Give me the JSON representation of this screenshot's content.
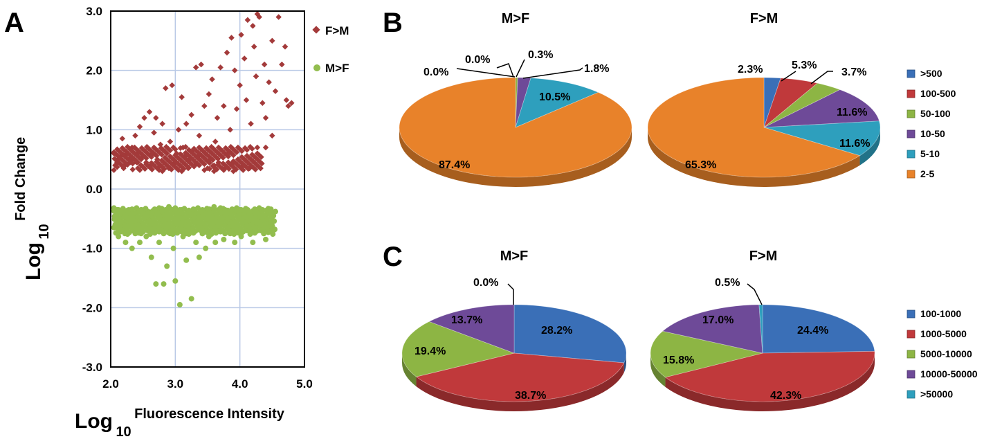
{
  "panels": {
    "a": "A",
    "b": "B",
    "c": "C"
  },
  "colors": {
    "fm": "#a33a3a",
    "mf": "#92bd4e",
    "grid": "#b9c9e6",
    "b_slices": [
      "#3a6fb7",
      "#c0393b",
      "#8db544",
      "#6e4a98",
      "#2e9fbd",
      "#e8822a"
    ],
    "c_slices": [
      "#3a6fb7",
      "#c0393b",
      "#8db544",
      "#6e4a98",
      "#2e9fbd"
    ]
  },
  "chart_data": [
    {
      "type": "scatter",
      "xlabel_main": "Log",
      "xlabel_sub": "10",
      "xlabel_sup": "Fluorescence Intensity",
      "ylabel_main": "Log",
      "ylabel_sub": "10",
      "ylabel_sup": "Fold Change",
      "xlim": [
        2.0,
        5.0
      ],
      "ylim": [
        -3.0,
        3.0
      ],
      "xticks": [
        "2.0",
        "3.0",
        "4.0",
        "5.0"
      ],
      "yticks": [
        "3.0",
        "2.0",
        "1.0",
        "0.0",
        "-1.0",
        "-2.0",
        "-3.0"
      ],
      "grid": true,
      "legend_position": "top-right",
      "series": [
        {
          "name": "F>M",
          "points": [
            [
              2.05,
              0.6
            ],
            [
              2.07,
              0.4
            ],
            [
              2.1,
              0.45
            ],
            [
              2.12,
              0.5
            ],
            [
              2.15,
              0.55
            ],
            [
              2.18,
              0.85
            ],
            [
              2.2,
              0.35
            ],
            [
              2.22,
              0.4
            ],
            [
              2.25,
              0.6
            ],
            [
              2.28,
              0.5
            ],
            [
              2.3,
              0.45
            ],
            [
              2.33,
              0.7
            ],
            [
              2.35,
              0.5
            ],
            [
              2.38,
              0.9
            ],
            [
              2.4,
              0.45
            ],
            [
              2.42,
              0.6
            ],
            [
              2.45,
              1.05
            ],
            [
              2.47,
              0.4
            ],
            [
              2.5,
              0.55
            ],
            [
              2.52,
              1.2
            ],
            [
              2.55,
              0.45
            ],
            [
              2.57,
              0.7
            ],
            [
              2.6,
              1.3
            ],
            [
              2.62,
              0.4
            ],
            [
              2.65,
              0.6
            ],
            [
              2.67,
              0.95
            ],
            [
              2.7,
              1.2
            ],
            [
              2.72,
              0.5
            ],
            [
              2.75,
              0.38
            ],
            [
              2.77,
              0.75
            ],
            [
              2.8,
              1.1
            ],
            [
              2.82,
              0.45
            ],
            [
              2.85,
              1.7
            ],
            [
              2.87,
              0.6
            ],
            [
              2.9,
              0.35
            ],
            [
              2.92,
              0.8
            ],
            [
              2.95,
              1.75
            ],
            [
              2.97,
              0.5
            ],
            [
              3.0,
              0.45
            ],
            [
              3.02,
              0.6
            ],
            [
              3.05,
              1.0
            ],
            [
              3.07,
              0.4
            ],
            [
              3.1,
              1.55
            ],
            [
              3.12,
              0.7
            ],
            [
              3.15,
              0.55
            ],
            [
              3.17,
              1.1
            ],
            [
              3.2,
              0.35
            ],
            [
              3.22,
              0.5
            ],
            [
              3.25,
              1.25
            ],
            [
              3.27,
              0.65
            ],
            [
              3.3,
              0.4
            ],
            [
              3.32,
              2.05
            ],
            [
              3.35,
              0.55
            ],
            [
              3.37,
              0.9
            ],
            [
              3.4,
              2.1
            ],
            [
              3.42,
              0.45
            ],
            [
              3.45,
              1.4
            ],
            [
              3.47,
              0.6
            ],
            [
              3.5,
              0.35
            ],
            [
              3.52,
              1.6
            ],
            [
              3.55,
              0.5
            ],
            [
              3.57,
              1.85
            ],
            [
              3.6,
              0.4
            ],
            [
              3.62,
              0.8
            ],
            [
              3.65,
              1.2
            ],
            [
              3.67,
              0.45
            ],
            [
              3.7,
              2.05
            ],
            [
              3.72,
              0.55
            ],
            [
              3.75,
              1.4
            ],
            [
              3.77,
              0.35
            ],
            [
              3.8,
              2.3
            ],
            [
              3.82,
              0.6
            ],
            [
              3.85,
              1.0
            ],
            [
              3.87,
              2.55
            ],
            [
              3.9,
              0.45
            ],
            [
              3.92,
              2.0
            ],
            [
              3.95,
              1.35
            ],
            [
              3.97,
              0.5
            ],
            [
              4.0,
              1.75
            ],
            [
              4.02,
              2.6
            ],
            [
              4.05,
              0.4
            ],
            [
              4.07,
              2.2
            ],
            [
              4.1,
              1.5
            ],
            [
              4.12,
              2.85
            ],
            [
              4.15,
              0.35
            ],
            [
              4.17,
              1.1
            ],
            [
              4.2,
              2.75
            ],
            [
              4.22,
              2.4
            ],
            [
              4.25,
              1.9
            ],
            [
              4.27,
              2.95
            ],
            [
              4.3,
              2.9
            ],
            [
              4.32,
              0.35
            ],
            [
              4.35,
              1.45
            ],
            [
              4.38,
              2.1
            ],
            [
              4.4,
              1.2
            ],
            [
              4.45,
              1.8
            ],
            [
              4.5,
              2.5
            ],
            [
              4.55,
              1.65
            ],
            [
              4.6,
              2.9
            ],
            [
              4.65,
              2.1
            ],
            [
              4.7,
              2.4
            ],
            [
              4.72,
              1.5
            ],
            [
              4.75,
              1.4
            ],
            [
              4.8,
              1.45
            ],
            [
              4.5,
              0.9
            ],
            [
              4.4,
              0.7
            ],
            [
              3.6,
              0.3
            ],
            [
              3.1,
              0.3
            ],
            [
              2.8,
              0.3
            ],
            [
              3.9,
              0.3
            ]
          ]
        },
        {
          "name": "M>F",
          "points": [
            [
              2.05,
              -0.65
            ],
            [
              2.08,
              -0.45
            ],
            [
              2.1,
              -0.35
            ],
            [
              2.12,
              -0.8
            ],
            [
              2.15,
              -0.5
            ],
            [
              2.18,
              -0.7
            ],
            [
              2.2,
              -0.4
            ],
            [
              2.23,
              -0.9
            ],
            [
              2.25,
              -0.55
            ],
            [
              2.28,
              -0.35
            ],
            [
              2.3,
              -0.6
            ],
            [
              2.33,
              -1.0
            ],
            [
              2.35,
              -0.45
            ],
            [
              2.38,
              -0.75
            ],
            [
              2.4,
              -0.4
            ],
            [
              2.43,
              -0.55
            ],
            [
              2.45,
              -0.9
            ],
            [
              2.48,
              -0.35
            ],
            [
              2.5,
              -0.65
            ],
            [
              2.53,
              -0.45
            ],
            [
              2.55,
              -0.8
            ],
            [
              2.58,
              -0.38
            ],
            [
              2.6,
              -0.55
            ],
            [
              2.63,
              -1.15
            ],
            [
              2.65,
              -0.45
            ],
            [
              2.68,
              -0.7
            ],
            [
              2.7,
              -1.6
            ],
            [
              2.72,
              -0.4
            ],
            [
              2.75,
              -0.9
            ],
            [
              2.78,
              -0.5
            ],
            [
              2.8,
              -0.65
            ],
            [
              2.82,
              -1.6
            ],
            [
              2.85,
              -0.35
            ],
            [
              2.87,
              -1.3
            ],
            [
              2.9,
              -0.5
            ],
            [
              2.92,
              -0.75
            ],
            [
              2.95,
              -0.4
            ],
            [
              2.97,
              -1.0
            ],
            [
              3.0,
              -1.55
            ],
            [
              3.02,
              -0.6
            ],
            [
              3.05,
              -0.45
            ],
            [
              3.07,
              -1.95
            ],
            [
              3.1,
              -0.35
            ],
            [
              3.12,
              -0.8
            ],
            [
              3.15,
              -0.55
            ],
            [
              3.17,
              -1.2
            ],
            [
              3.2,
              -0.4
            ],
            [
              3.22,
              -0.7
            ],
            [
              3.25,
              -1.85
            ],
            [
              3.27,
              -0.5
            ],
            [
              3.3,
              -0.35
            ],
            [
              3.32,
              -0.9
            ],
            [
              3.35,
              -0.6
            ],
            [
              3.37,
              -1.15
            ],
            [
              3.4,
              -0.45
            ],
            [
              3.42,
              -0.75
            ],
            [
              3.45,
              -0.38
            ],
            [
              3.47,
              -1.0
            ],
            [
              3.5,
              -0.55
            ],
            [
              3.52,
              -0.8
            ],
            [
              3.55,
              -0.4
            ],
            [
              3.57,
              -0.65
            ],
            [
              3.6,
              -0.35
            ],
            [
              3.62,
              -0.9
            ],
            [
              3.65,
              -0.5
            ],
            [
              3.67,
              -0.7
            ],
            [
              3.7,
              -0.4
            ],
            [
              3.72,
              -0.55
            ],
            [
              3.75,
              -0.85
            ],
            [
              3.77,
              -0.35
            ],
            [
              3.8,
              -0.6
            ],
            [
              3.82,
              -0.45
            ],
            [
              3.85,
              -0.75
            ],
            [
              3.87,
              -0.38
            ],
            [
              3.9,
              -0.55
            ],
            [
              3.92,
              -0.9
            ],
            [
              3.95,
              -0.4
            ],
            [
              3.97,
              -0.65
            ],
            [
              4.0,
              -0.35
            ],
            [
              4.02,
              -0.8
            ],
            [
              4.05,
              -0.5
            ],
            [
              4.07,
              -0.4
            ],
            [
              4.1,
              -0.7
            ],
            [
              4.12,
              -0.35
            ],
            [
              4.15,
              -0.55
            ],
            [
              4.17,
              -0.45
            ],
            [
              4.2,
              -0.9
            ],
            [
              4.22,
              -0.38
            ],
            [
              4.25,
              -0.6
            ],
            [
              4.27,
              -0.4
            ],
            [
              4.3,
              -0.5
            ],
            [
              4.32,
              -0.7
            ],
            [
              4.35,
              -0.35
            ],
            [
              4.38,
              -0.45
            ],
            [
              4.4,
              -0.85
            ],
            [
              4.45,
              -0.4
            ],
            [
              4.5,
              -0.55
            ],
            [
              4.55,
              -0.38
            ],
            [
              2.9,
              -0.3
            ],
            [
              3.6,
              -0.3
            ]
          ]
        }
      ]
    },
    {
      "type": "pie",
      "panel": "B",
      "charts": [
        {
          "title": "M>F",
          "slices": [
            {
              "label": ">500",
              "value": 0.0,
              "text": "0.0%"
            },
            {
              "label": "100-500",
              "value": 0.0,
              "text": "0.0%"
            },
            {
              "label": "50-100",
              "value": 0.3,
              "text": "0.3%"
            },
            {
              "label": "10-50",
              "value": 1.8,
              "text": "1.8%"
            },
            {
              "label": "5-10",
              "value": 10.5,
              "text": "10.5%"
            },
            {
              "label": "2-5",
              "value": 87.4,
              "text": "87.4%"
            }
          ]
        },
        {
          "title": "F>M",
          "slices": [
            {
              "label": ">500",
              "value": 2.3,
              "text": "2.3%"
            },
            {
              "label": "100-500",
              "value": 5.3,
              "text": "5.3%"
            },
            {
              "label": "50-100",
              "value": 3.7,
              "text": "3.7%"
            },
            {
              "label": "10-50",
              "value": 11.6,
              "text": "11.6%"
            },
            {
              "label": "5-10",
              "value": 11.6,
              "text": "11.6%"
            },
            {
              "label": "2-5",
              "value": 65.3,
              "text": "65.3%"
            }
          ]
        }
      ],
      "legend": [
        ">500",
        "100-500",
        "50-100",
        "10-50",
        "5-10",
        "2-5"
      ],
      "legend_position": "right"
    },
    {
      "type": "pie",
      "panel": "C",
      "charts": [
        {
          "title": "M>F",
          "slices": [
            {
              "label": "100-1000",
              "value": 28.2,
              "text": "28.2%"
            },
            {
              "label": "1000-5000",
              "value": 38.7,
              "text": "38.7%"
            },
            {
              "label": "5000-10000",
              "value": 19.4,
              "text": "19.4%"
            },
            {
              "label": "10000-50000",
              "value": 13.7,
              "text": "13.7%"
            },
            {
              "label": ">50000",
              "value": 0.0,
              "text": "0.0%"
            }
          ]
        },
        {
          "title": "F>M",
          "slices": [
            {
              "label": "100-1000",
              "value": 24.4,
              "text": "24.4%"
            },
            {
              "label": "1000-5000",
              "value": 42.3,
              "text": "42.3%"
            },
            {
              "label": "5000-10000",
              "value": 15.8,
              "text": "15.8%"
            },
            {
              "label": "10000-50000",
              "value": 17.0,
              "text": "17.0%"
            },
            {
              "label": ">50000",
              "value": 0.5,
              "text": "0.5%"
            }
          ]
        }
      ],
      "legend": [
        "100-1000",
        "1000-5000",
        "5000-10000",
        "10000-50000",
        ">50000"
      ],
      "legend_position": "right"
    }
  ]
}
